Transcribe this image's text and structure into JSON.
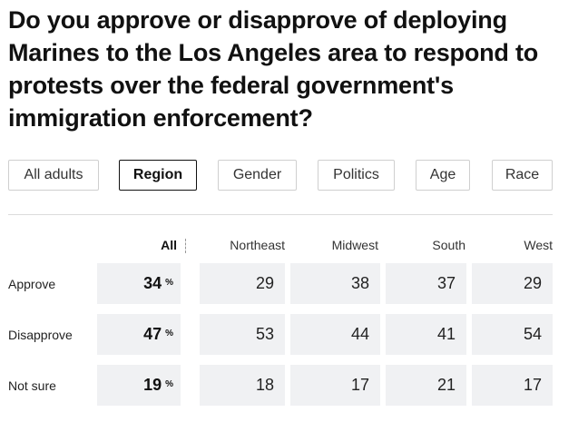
{
  "title": "Do you approve or disapprove of deploying Marines to the Los Angeles area to respond to protests over the federal government's immigration enforcement?",
  "tabs": [
    {
      "label": "All adults",
      "active": false
    },
    {
      "label": "Region",
      "active": true
    },
    {
      "label": "Gender",
      "active": false
    },
    {
      "label": "Politics",
      "active": false
    },
    {
      "label": "Age",
      "active": false
    },
    {
      "label": "Race",
      "active": false
    }
  ],
  "table": {
    "columns": [
      "All",
      "Northeast",
      "Midwest",
      "South",
      "West"
    ],
    "pct_symbol": "%",
    "rows": [
      {
        "label": "Approve",
        "all": "34",
        "values": [
          "29",
          "38",
          "37",
          "29"
        ]
      },
      {
        "label": "Disapprove",
        "all": "47",
        "values": [
          "53",
          "44",
          "41",
          "54"
        ]
      },
      {
        "label": "Not sure",
        "all": "19",
        "values": [
          "18",
          "17",
          "21",
          "17"
        ]
      }
    ]
  }
}
